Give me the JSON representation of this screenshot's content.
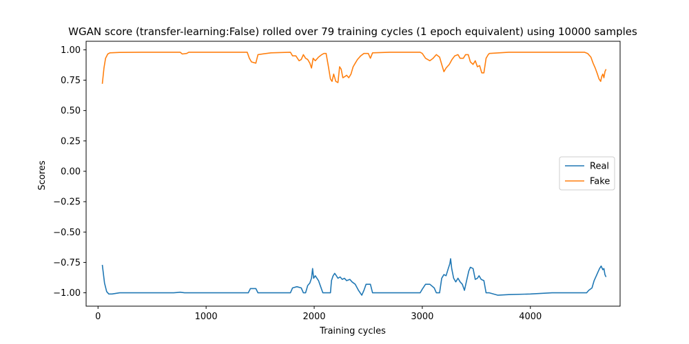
{
  "chart_data": {
    "type": "line",
    "title": "WGAN score (transfer-learning:False) rolled over 79 training cycles (1 epoch equivalent) using 10000 samples",
    "xlabel": "Training cycles",
    "ylabel": "Scores",
    "xlim": [
      -110,
      4830
    ],
    "ylim": [
      -1.11,
      1.07
    ],
    "xticks": [
      0,
      1000,
      2000,
      3000,
      4000
    ],
    "yticks": [
      -1.0,
      -0.75,
      -0.5,
      -0.25,
      0.0,
      0.25,
      0.5,
      0.75,
      1.0
    ],
    "grid": false,
    "legend_position": "center-right",
    "series": [
      {
        "name": "Real",
        "color": "#1f77b4",
        "points": [
          [
            40,
            -0.77
          ],
          [
            60,
            -0.92
          ],
          [
            80,
            -0.99
          ],
          [
            100,
            -1.01
          ],
          [
            130,
            -1.01
          ],
          [
            200,
            -1.0
          ],
          [
            400,
            -1.0
          ],
          [
            700,
            -1.0
          ],
          [
            760,
            -0.995
          ],
          [
            800,
            -1.0
          ],
          [
            830,
            -1.0
          ],
          [
            1000,
            -1.0
          ],
          [
            1200,
            -1.0
          ],
          [
            1390,
            -1.0
          ],
          [
            1410,
            -0.965
          ],
          [
            1460,
            -0.965
          ],
          [
            1480,
            -1.0
          ],
          [
            1600,
            -1.0
          ],
          [
            1780,
            -1.0
          ],
          [
            1800,
            -0.96
          ],
          [
            1840,
            -0.95
          ],
          [
            1880,
            -0.96
          ],
          [
            1900,
            -1.0
          ],
          [
            1920,
            -1.0
          ],
          [
            1940,
            -0.94
          ],
          [
            1960,
            -0.92
          ],
          [
            1975,
            -0.88
          ],
          [
            1985,
            -0.8
          ],
          [
            1995,
            -0.88
          ],
          [
            2010,
            -0.86
          ],
          [
            2040,
            -0.9
          ],
          [
            2060,
            -0.95
          ],
          [
            2080,
            -1.0
          ],
          [
            2150,
            -1.0
          ],
          [
            2160,
            -0.9
          ],
          [
            2175,
            -0.86
          ],
          [
            2190,
            -0.84
          ],
          [
            2205,
            -0.86
          ],
          [
            2220,
            -0.88
          ],
          [
            2240,
            -0.87
          ],
          [
            2260,
            -0.89
          ],
          [
            2280,
            -0.88
          ],
          [
            2300,
            -0.9
          ],
          [
            2330,
            -0.89
          ],
          [
            2350,
            -0.91
          ],
          [
            2380,
            -0.93
          ],
          [
            2410,
            -0.98
          ],
          [
            2440,
            -1.02
          ],
          [
            2460,
            -0.98
          ],
          [
            2480,
            -0.93
          ],
          [
            2520,
            -0.93
          ],
          [
            2540,
            -1.0
          ],
          [
            2600,
            -1.0
          ],
          [
            2800,
            -1.0
          ],
          [
            2980,
            -1.0
          ],
          [
            3000,
            -0.97
          ],
          [
            3030,
            -0.93
          ],
          [
            3070,
            -0.93
          ],
          [
            3110,
            -0.96
          ],
          [
            3130,
            -1.0
          ],
          [
            3160,
            -1.0
          ],
          [
            3180,
            -0.88
          ],
          [
            3200,
            -0.85
          ],
          [
            3220,
            -0.86
          ],
          [
            3240,
            -0.8
          ],
          [
            3255,
            -0.76
          ],
          [
            3262,
            -0.72
          ],
          [
            3272,
            -0.8
          ],
          [
            3290,
            -0.88
          ],
          [
            3310,
            -0.91
          ],
          [
            3330,
            -0.88
          ],
          [
            3350,
            -0.91
          ],
          [
            3370,
            -0.93
          ],
          [
            3390,
            -0.98
          ],
          [
            3410,
            -0.9
          ],
          [
            3430,
            -0.82
          ],
          [
            3445,
            -0.79
          ],
          [
            3470,
            -0.8
          ],
          [
            3490,
            -0.89
          ],
          [
            3510,
            -0.88
          ],
          [
            3525,
            -0.86
          ],
          [
            3545,
            -0.89
          ],
          [
            3570,
            -0.9
          ],
          [
            3590,
            -1.0
          ],
          [
            3620,
            -1.0
          ],
          [
            3700,
            -1.02
          ],
          [
            3800,
            -1.015
          ],
          [
            4000,
            -1.01
          ],
          [
            4200,
            -1.0
          ],
          [
            4500,
            -1.0
          ],
          [
            4520,
            -1.0
          ],
          [
            4540,
            -0.98
          ],
          [
            4570,
            -0.96
          ],
          [
            4590,
            -0.9
          ],
          [
            4610,
            -0.86
          ],
          [
            4625,
            -0.83
          ],
          [
            4640,
            -0.8
          ],
          [
            4655,
            -0.78
          ],
          [
            4670,
            -0.81
          ],
          [
            4680,
            -0.8
          ],
          [
            4690,
            -0.85
          ],
          [
            4700,
            -0.87
          ]
        ]
      },
      {
        "name": "Fake",
        "color": "#ff7f0e",
        "points": [
          [
            40,
            0.72
          ],
          [
            55,
            0.85
          ],
          [
            70,
            0.93
          ],
          [
            90,
            0.965
          ],
          [
            110,
            0.975
          ],
          [
            200,
            0.978
          ],
          [
            400,
            0.98
          ],
          [
            760,
            0.98
          ],
          [
            780,
            0.965
          ],
          [
            820,
            0.97
          ],
          [
            840,
            0.98
          ],
          [
            1000,
            0.98
          ],
          [
            1200,
            0.98
          ],
          [
            1380,
            0.98
          ],
          [
            1400,
            0.93
          ],
          [
            1420,
            0.9
          ],
          [
            1460,
            0.89
          ],
          [
            1480,
            0.96
          ],
          [
            1600,
            0.975
          ],
          [
            1780,
            0.98
          ],
          [
            1800,
            0.95
          ],
          [
            1830,
            0.95
          ],
          [
            1860,
            0.91
          ],
          [
            1880,
            0.92
          ],
          [
            1900,
            0.96
          ],
          [
            1920,
            0.93
          ],
          [
            1940,
            0.92
          ],
          [
            1960,
            0.89
          ],
          [
            1975,
            0.85
          ],
          [
            1990,
            0.93
          ],
          [
            2010,
            0.91
          ],
          [
            2040,
            0.94
          ],
          [
            2070,
            0.96
          ],
          [
            2090,
            0.97
          ],
          [
            2110,
            0.97
          ],
          [
            2130,
            0.87
          ],
          [
            2150,
            0.76
          ],
          [
            2165,
            0.74
          ],
          [
            2180,
            0.8
          ],
          [
            2200,
            0.74
          ],
          [
            2220,
            0.73
          ],
          [
            2235,
            0.86
          ],
          [
            2250,
            0.84
          ],
          [
            2265,
            0.77
          ],
          [
            2285,
            0.78
          ],
          [
            2300,
            0.79
          ],
          [
            2320,
            0.77
          ],
          [
            2340,
            0.8
          ],
          [
            2360,
            0.86
          ],
          [
            2380,
            0.89
          ],
          [
            2400,
            0.92
          ],
          [
            2430,
            0.95
          ],
          [
            2460,
            0.97
          ],
          [
            2500,
            0.97
          ],
          [
            2520,
            0.93
          ],
          [
            2540,
            0.975
          ],
          [
            2700,
            0.98
          ],
          [
            2980,
            0.98
          ],
          [
            3000,
            0.97
          ],
          [
            3030,
            0.93
          ],
          [
            3070,
            0.91
          ],
          [
            3100,
            0.93
          ],
          [
            3130,
            0.96
          ],
          [
            3160,
            0.94
          ],
          [
            3180,
            0.88
          ],
          [
            3200,
            0.82
          ],
          [
            3220,
            0.85
          ],
          [
            3250,
            0.88
          ],
          [
            3275,
            0.92
          ],
          [
            3300,
            0.95
          ],
          [
            3330,
            0.96
          ],
          [
            3350,
            0.93
          ],
          [
            3380,
            0.93
          ],
          [
            3400,
            0.96
          ],
          [
            3425,
            0.96
          ],
          [
            3445,
            0.9
          ],
          [
            3470,
            0.88
          ],
          [
            3490,
            0.91
          ],
          [
            3510,
            0.86
          ],
          [
            3530,
            0.87
          ],
          [
            3550,
            0.81
          ],
          [
            3570,
            0.81
          ],
          [
            3590,
            0.93
          ],
          [
            3610,
            0.96
          ],
          [
            3620,
            0.97
          ],
          [
            3800,
            0.98
          ],
          [
            4000,
            0.98
          ],
          [
            4200,
            0.98
          ],
          [
            4500,
            0.98
          ],
          [
            4530,
            0.97
          ],
          [
            4560,
            0.94
          ],
          [
            4580,
            0.89
          ],
          [
            4600,
            0.85
          ],
          [
            4620,
            0.8
          ],
          [
            4635,
            0.76
          ],
          [
            4650,
            0.74
          ],
          [
            4660,
            0.78
          ],
          [
            4670,
            0.8
          ],
          [
            4680,
            0.77
          ],
          [
            4690,
            0.82
          ],
          [
            4700,
            0.84
          ]
        ]
      }
    ]
  }
}
